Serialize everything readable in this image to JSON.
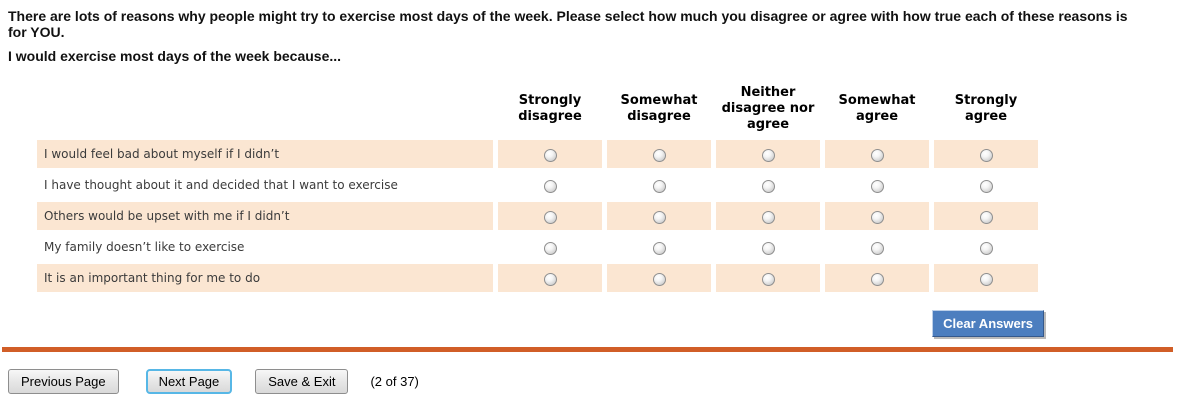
{
  "instructions": {
    "intro_line1": "There are lots of reasons why people might try to exercise most days of the week. Please select how much you disagree or agree with how true each of these reasons is",
    "intro_line2": "for YOU.",
    "stem": "I would exercise most days of the week because..."
  },
  "matrix": {
    "columns": [
      "Strongly disagree",
      "Somewhat disagree",
      "Neither disagree nor agree",
      "Somewhat agree",
      "Strongly agree"
    ],
    "rows": [
      "I would feel bad about myself if I didn’t",
      "I have thought about it and decided that I want to exercise",
      "Others would be upset with me if I didn’t",
      "My family doesn’t like to exercise",
      "It is an important thing for me to do"
    ],
    "selections": [
      null,
      null,
      null,
      null,
      null
    ]
  },
  "clear_button_label": "Clear Answers",
  "footer": {
    "previous_label": "Previous Page",
    "next_label": "Next Page",
    "save_label": "Save & Exit",
    "page_indicator": "(2 of 37)"
  },
  "colors": {
    "row_highlight": "#fbe6d2",
    "divider": "#d15e27",
    "clear_button": "#4c7ebf",
    "focus_ring": "#57b7e6"
  }
}
